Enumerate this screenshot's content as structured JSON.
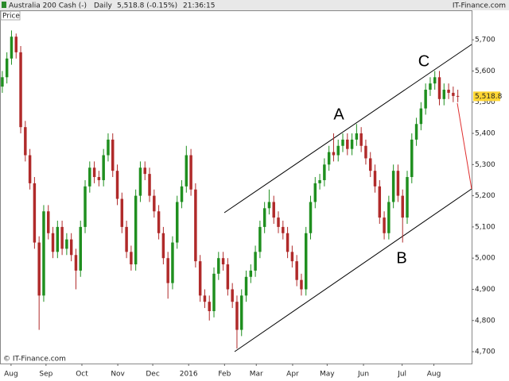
{
  "header": {
    "title": "Australia 200 Cash (-)",
    "period": "Daily",
    "quote": "5,518.8 (-0.15%)",
    "time": "21:36:15",
    "brand": "IT-Finance.com"
  },
  "chart_data": {
    "type": "candlestick",
    "panel_label": "Price",
    "footer": "© IT-Finance.com",
    "up_color": "#1f8f1f",
    "down_color": "#b02a2a",
    "open": [
      5550,
      5580,
      5640,
      5710,
      5660,
      5420,
      5330,
      5240,
      5050,
      4880,
      5150,
      5080,
      5020,
      5100,
      5030,
      5060,
      5010,
      4960,
      5100,
      5230,
      5290,
      5260,
      5250,
      5330,
      5380,
      5280,
      5190,
      5100,
      5020,
      4980,
      5200,
      5290,
      5270,
      5200,
      5150,
      5080,
      5000,
      4920,
      5050,
      5180,
      5230,
      5330,
      5220,
      4990,
      4880,
      4860,
      4830,
      4950,
      5000,
      4980,
      4900,
      4860,
      4770,
      4880,
      4940,
      4960,
      5020,
      5100,
      5160,
      5180,
      5130,
      5100,
      5080,
      5020,
      4990,
      4930,
      4900,
      5080,
      5180,
      5240,
      5250,
      5300,
      5340,
      5330,
      5360,
      5380,
      5350,
      5380,
      5400,
      5360,
      5320,
      5280,
      5230,
      5130,
      5080,
      5180,
      5280,
      5200,
      5130,
      5260,
      5380,
      5430,
      5480,
      5540,
      5560,
      5580,
      5510,
      5540,
      5530,
      5520
    ],
    "high": [
      5600,
      5660,
      5730,
      5720,
      5680,
      5440,
      5350,
      5260,
      5070,
      5170,
      5170,
      5100,
      5120,
      5120,
      5080,
      5080,
      5030,
      5120,
      5250,
      5310,
      5310,
      5280,
      5350,
      5400,
      5400,
      5300,
      5210,
      5120,
      5040,
      5220,
      5310,
      5310,
      5290,
      5220,
      5170,
      5100,
      5020,
      5070,
      5200,
      5250,
      5360,
      5350,
      5240,
      5010,
      4900,
      4880,
      4970,
      5020,
      5020,
      5000,
      4920,
      4880,
      4900,
      4960,
      4980,
      5040,
      5120,
      5180,
      5220,
      5200,
      5150,
      5120,
      5100,
      5040,
      5010,
      4950,
      5100,
      5200,
      5260,
      5270,
      5320,
      5360,
      5400,
      5380,
      5400,
      5400,
      5400,
      5430,
      5420,
      5380,
      5340,
      5300,
      5250,
      5150,
      5200,
      5300,
      5300,
      5220,
      5280,
      5400,
      5450,
      5500,
      5560,
      5580,
      5600,
      5600,
      5560,
      5560,
      5550,
      5540
    ],
    "low": [
      5530,
      5560,
      5620,
      5640,
      5400,
      5310,
      5220,
      5030,
      4770,
      4860,
      5060,
      5000,
      5000,
      5010,
      5010,
      4990,
      4900,
      4940,
      5080,
      5210,
      5240,
      5230,
      5230,
      5310,
      5260,
      5170,
      5080,
      5000,
      4960,
      4960,
      5180,
      5250,
      5180,
      5130,
      5060,
      4980,
      4870,
      4900,
      5030,
      5160,
      5210,
      5200,
      4970,
      4860,
      4840,
      4800,
      4810,
      4930,
      4960,
      4880,
      4840,
      4710,
      4750,
      4860,
      4920,
      4940,
      5000,
      5080,
      5140,
      5110,
      5080,
      5060,
      5000,
      4970,
      4910,
      4880,
      4880,
      5060,
      5160,
      5220,
      5230,
      5280,
      5310,
      5310,
      5340,
      5330,
      5330,
      5360,
      5340,
      5300,
      5260,
      5210,
      5110,
      5060,
      5060,
      5160,
      5180,
      5050,
      5110,
      5240,
      5360,
      5410,
      5460,
      5520,
      5540,
      5490,
      5490,
      5510,
      5500,
      5500
    ],
    "close": [
      5580,
      5640,
      5710,
      5660,
      5420,
      5330,
      5240,
      5050,
      4880,
      5150,
      5080,
      5020,
      5100,
      5030,
      5060,
      5010,
      4960,
      5100,
      5230,
      5290,
      5260,
      5250,
      5330,
      5380,
      5280,
      5190,
      5100,
      5020,
      4980,
      5200,
      5290,
      5270,
      5200,
      5150,
      5080,
      5000,
      4920,
      5050,
      5180,
      5230,
      5330,
      5220,
      4990,
      4880,
      4860,
      4830,
      4950,
      5000,
      4980,
      4900,
      4860,
      4770,
      4880,
      4940,
      4960,
      5020,
      5100,
      5160,
      5180,
      5130,
      5100,
      5080,
      5020,
      4990,
      4930,
      4900,
      5080,
      5180,
      5240,
      5250,
      5300,
      5340,
      5330,
      5360,
      5380,
      5350,
      5380,
      5400,
      5360,
      5320,
      5280,
      5230,
      5130,
      5080,
      5180,
      5280,
      5200,
      5130,
      5260,
      5380,
      5430,
      5480,
      5540,
      5560,
      5580,
      5510,
      5540,
      5530,
      5520,
      5518.8
    ],
    "last_price": {
      "value": 5518.8,
      "label": "5,518.8"
    },
    "xlim": [
      -0.5,
      102
    ],
    "xticks": [
      {
        "value": 1.9,
        "label": "Aug"
      },
      {
        "value": 9.5,
        "label": "Sep"
      },
      {
        "value": 17.3,
        "label": "Oct"
      },
      {
        "value": 25.1,
        "label": "Nov"
      },
      {
        "value": 32.7,
        "label": "Dec"
      },
      {
        "value": 40.5,
        "label": "2016"
      },
      {
        "value": 48.3,
        "label": "Feb"
      },
      {
        "value": 55.2,
        "label": "Mar"
      },
      {
        "value": 63.1,
        "label": "Apr"
      },
      {
        "value": 70.6,
        "label": "May"
      },
      {
        "value": 78.5,
        "label": "Jun"
      },
      {
        "value": 86.9,
        "label": "Jul"
      },
      {
        "value": 93.8,
        "label": "Aug"
      }
    ],
    "ylim": [
      4662,
      5792
    ],
    "yticks": [
      {
        "value": 4700,
        "label": "4,700"
      },
      {
        "value": 4800,
        "label": "4,800"
      },
      {
        "value": 4900,
        "label": "4,900"
      },
      {
        "value": 5000,
        "label": "5,000"
      },
      {
        "value": 5100,
        "label": "5,100"
      },
      {
        "value": 5200,
        "label": "5,200"
      },
      {
        "value": 5300,
        "label": "5,300"
      },
      {
        "value": 5400,
        "label": "5,400"
      },
      {
        "value": 5500,
        "label": "5,500"
      },
      {
        "value": 5600,
        "label": "5,600"
      },
      {
        "value": 5700,
        "label": "5,700"
      }
    ],
    "annotations": [
      "A",
      "B",
      "C"
    ]
  }
}
